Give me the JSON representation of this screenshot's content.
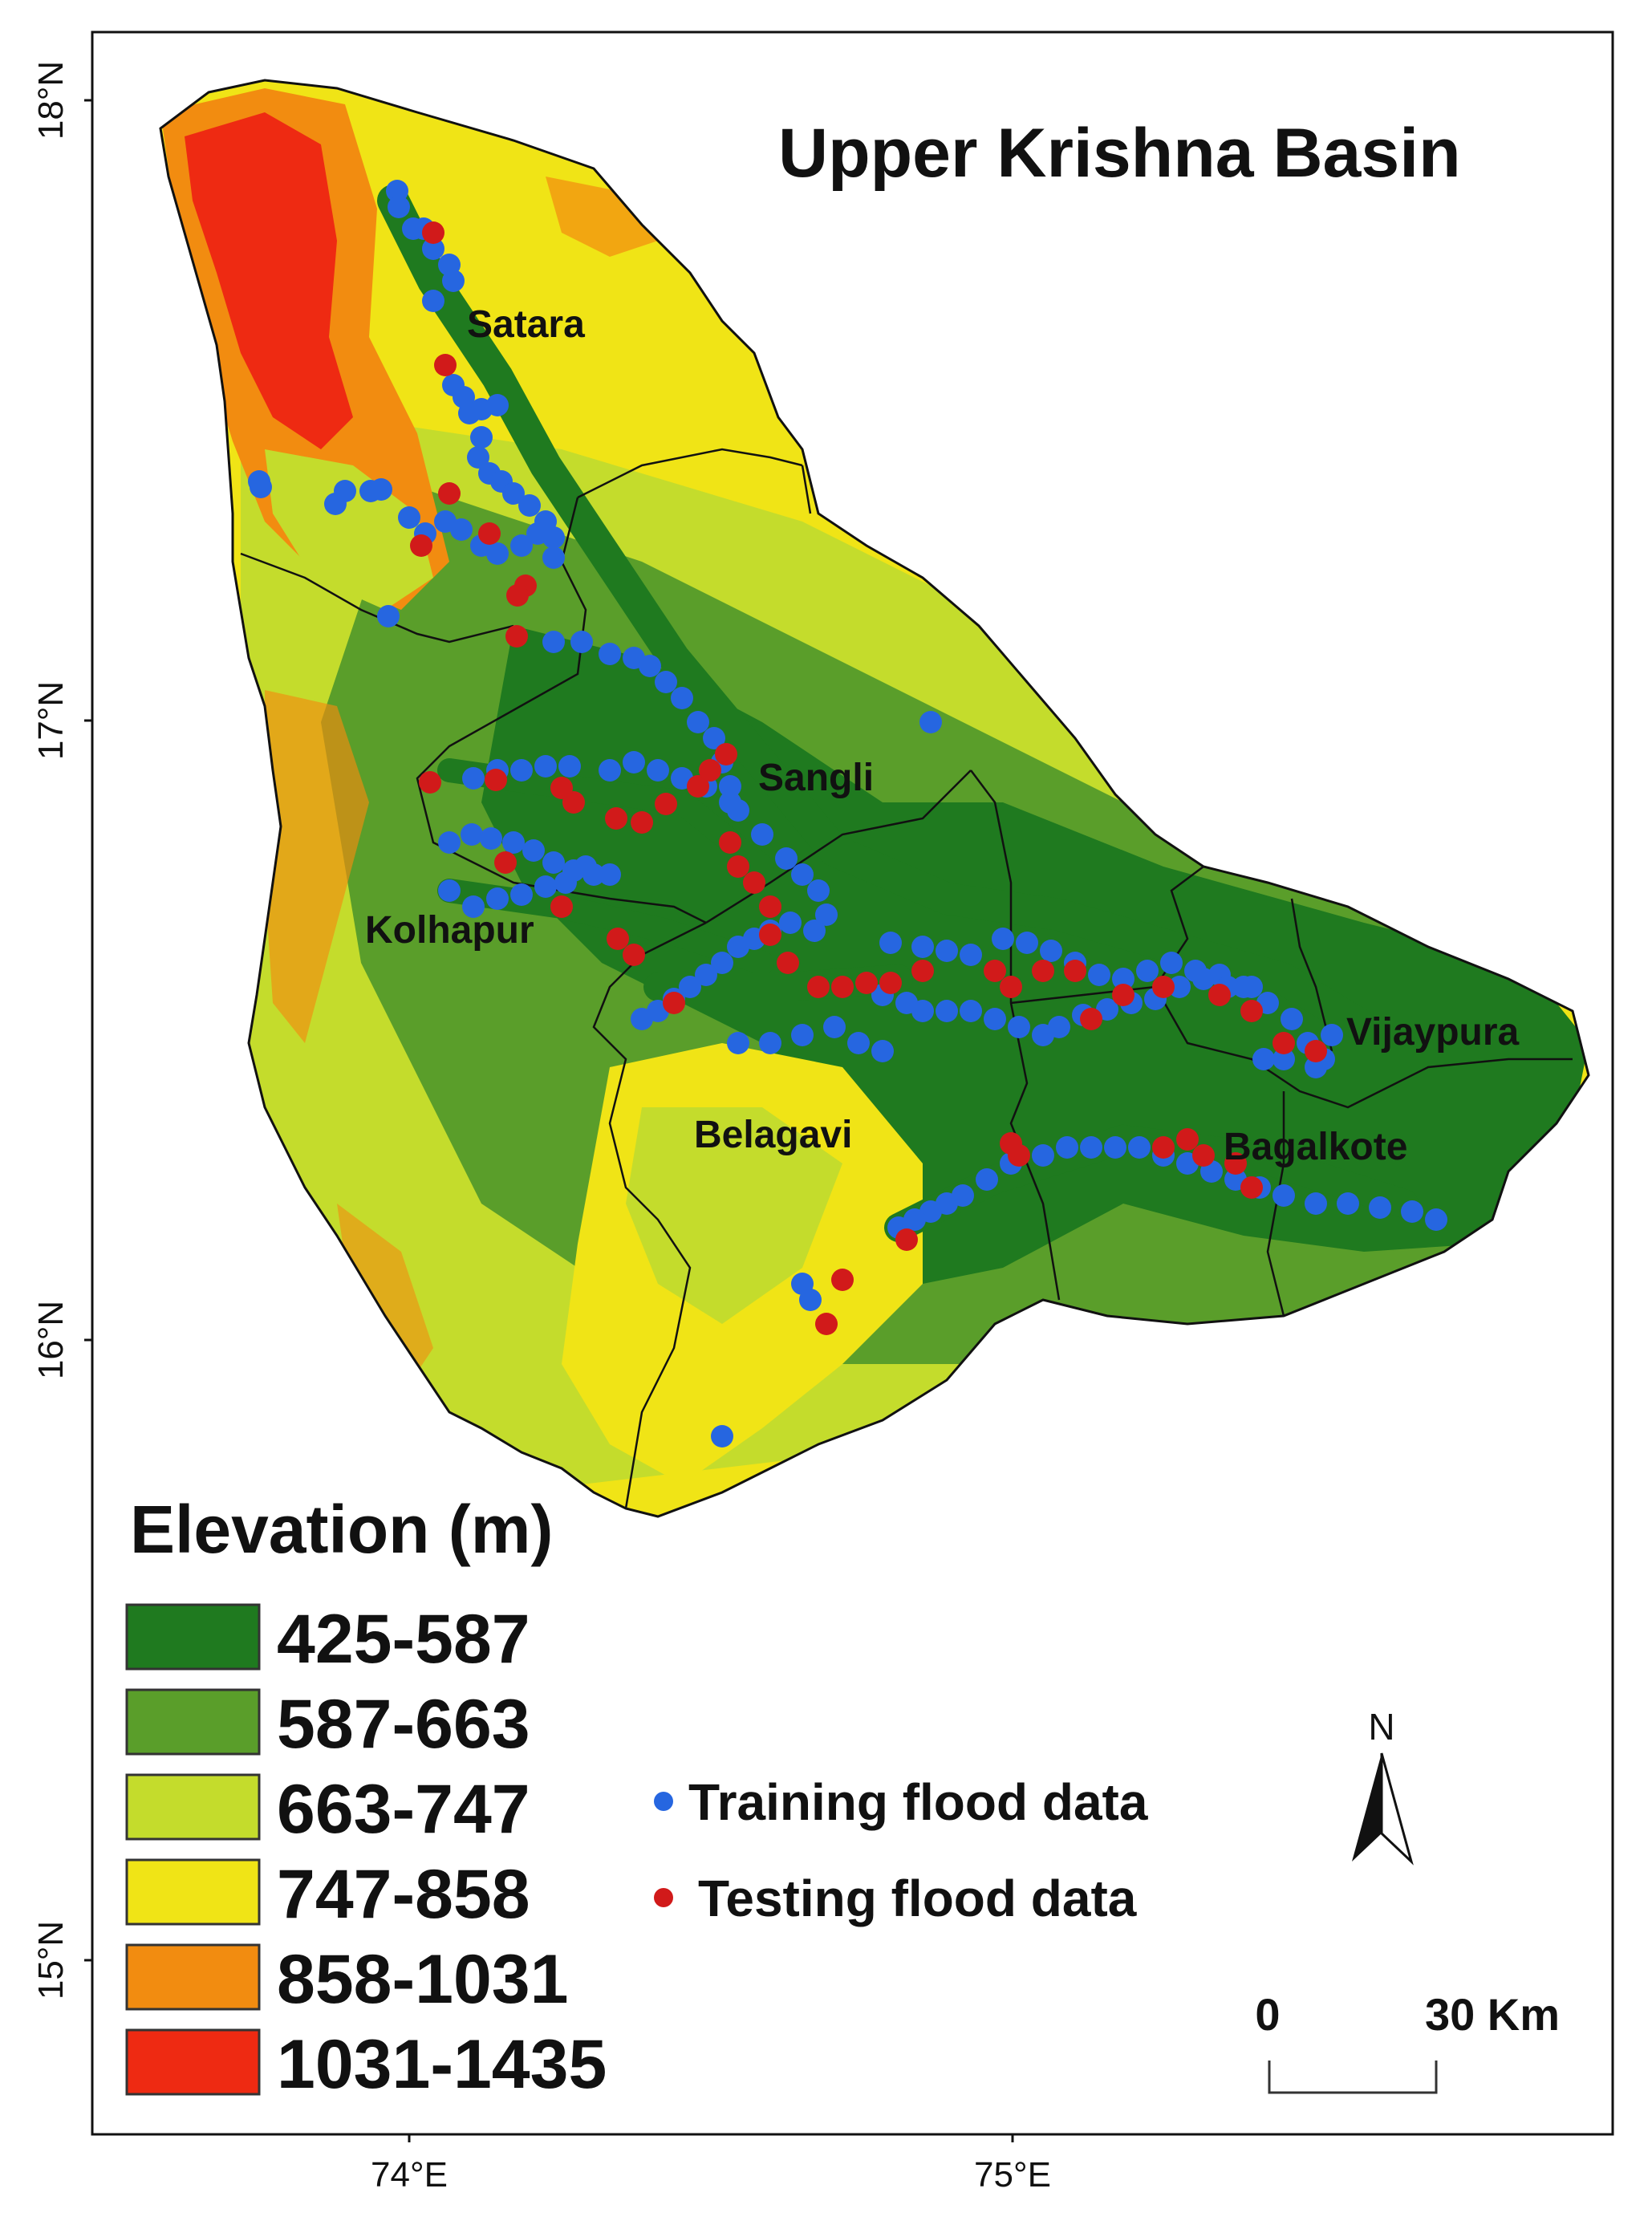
{
  "map": {
    "title": "Upper Krishna Basin",
    "lat_ticks": [
      {
        "label": "18°N",
        "value": 18
      },
      {
        "label": "17°N",
        "value": 17
      },
      {
        "label": "16°N",
        "value": 16
      },
      {
        "label": "15°N",
        "value": 15
      }
    ],
    "lon_ticks": [
      {
        "label": "74°E",
        "value": 74
      },
      {
        "label": "75°E",
        "value": 75
      }
    ],
    "districts": {
      "satara": "Satara",
      "sangli": "Sangli",
      "kolhapur": "Kolhapur",
      "belagavi": "Belagavi",
      "vijaypura": "Vijaypura",
      "bagalkote": "Bagalkote"
    }
  },
  "legend": {
    "title": "Elevation (m)",
    "classes": [
      {
        "label": "425-587",
        "color": "#1f7a1f"
      },
      {
        "label": "587-663",
        "color": "#5a9e2a"
      },
      {
        "label": "663-747",
        "color": "#c4dc2c"
      },
      {
        "label": "747-858",
        "color": "#f0e416"
      },
      {
        "label": "858-1031",
        "color": "#f28c10"
      },
      {
        "label": "1031-1435",
        "color": "#ee2a12"
      }
    ],
    "points": [
      {
        "label": "Training flood data",
        "color": "#2666e0"
      },
      {
        "label": "Testing flood data",
        "color": "#d11a1a"
      }
    ]
  },
  "north_arrow": {
    "label": "N"
  },
  "scale_bar": {
    "start_label": "0",
    "end_label": "30 Km"
  }
}
